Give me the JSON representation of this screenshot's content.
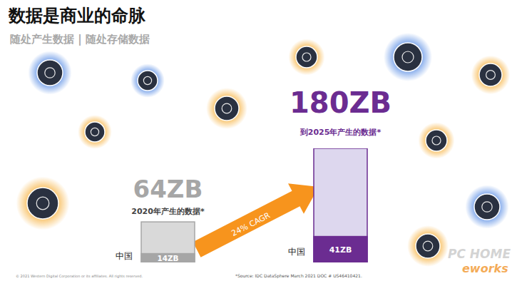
{
  "chart_data": {
    "type": "bar",
    "title": "数据是商业的命脉",
    "subtitle": "随处产生数据 | 随处存储数据",
    "categories": [
      "2020年产生的数据*",
      "到2025年产生的数据*"
    ],
    "series": [
      {
        "values": [
          64,
          180
        ],
        "value_labels": [
          "64ZB",
          "180ZB"
        ],
        "colors": [
          "#d9d9d9",
          "#ddd7ee"
        ]
      },
      {
        "name": "中国",
        "values": [
          14,
          41
        ],
        "value_labels": [
          "14ZB",
          "41ZB"
        ],
        "colors": [
          "#a6a6a6",
          "#6b2c91"
        ]
      }
    ],
    "ylim": [
      0,
      180
    ],
    "tick_labels": false,
    "data_labels": true,
    "annotation": "24% CAGR",
    "footer": "© 2021 Western Digital Corporation or its affiliates. All rights reserved.",
    "source": "*Source: IDC DataSphere March 2021 DOC # US46410421.",
    "watermark": [
      "PC HOME",
      "eworks"
    ]
  }
}
